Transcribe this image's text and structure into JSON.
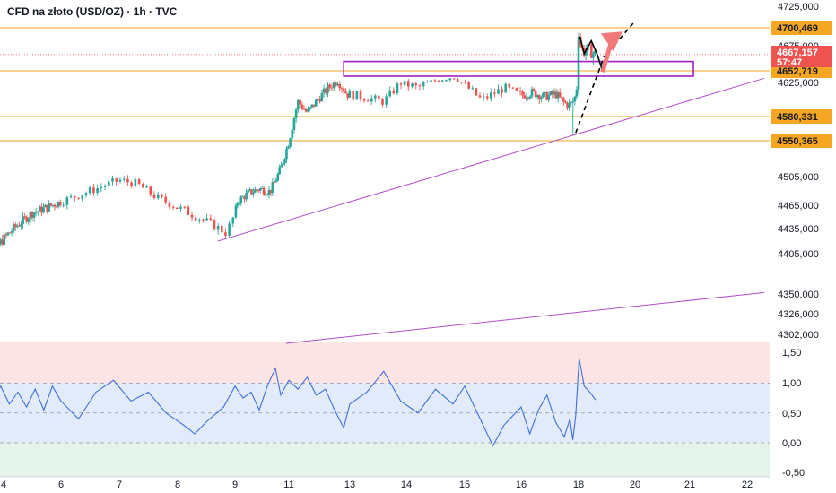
{
  "header": {
    "title": "CFD na złoto (USD/OZ) · 1h · TVC"
  },
  "colors": {
    "up": "#26a69a",
    "down": "#ef5350",
    "level_line": "#f5a623",
    "trendline": "#b04fc9",
    "box": "#a020c0",
    "oscillator": "#3d6fd6",
    "last_price": "#ef5350",
    "osc_zone_top": "#fde4e4",
    "osc_zone_mid": "#e3ebfb",
    "osc_zone_bottom": "#e4f4ea"
  },
  "chart_data": [
    {
      "type": "candlestick",
      "title": "CFD na złoto (USD/OZ) · 1h · TVC",
      "ylim": [
        4300,
        4730
      ],
      "y_ticks": [
        "4725,000",
        "4700,469",
        "4675,000",
        "4667,157",
        "4652,719",
        "4625,000",
        "4580,331",
        "4550,365",
        "4505,000",
        "4465,000",
        "4435,000",
        "4405,000",
        "4350,000",
        "4326,000",
        "4302,000"
      ],
      "x_ticks": [
        "4",
        "6",
        "7",
        "8",
        "9",
        "11",
        "13",
        "14",
        "15",
        "16",
        "18",
        "20",
        "21",
        "22"
      ],
      "x_tick_days": [
        4,
        6,
        7,
        8,
        9,
        11,
        13,
        14,
        15,
        16,
        18,
        20,
        21,
        22
      ],
      "horizontal_levels": [
        4700.469,
        4652.719,
        4580.331,
        4550.365
      ],
      "last_price": 4667.157,
      "last_price_label": "4667,157",
      "countdown": "57:47",
      "price_path": [
        [
          3.05,
          4330
        ],
        [
          3.4,
          4390
        ],
        [
          3.8,
          4415
        ],
        [
          4.2,
          4430
        ],
        [
          4.5,
          4440
        ],
        [
          5.0,
          4455
        ],
        [
          5.5,
          4462
        ],
        [
          6.0,
          4470
        ],
        [
          6.5,
          4485
        ],
        [
          7.0,
          4500
        ],
        [
          7.3,
          4495
        ],
        [
          7.6,
          4478
        ],
        [
          8.0,
          4462
        ],
        [
          8.3,
          4452
        ],
        [
          8.6,
          4440
        ],
        [
          8.85,
          4430
        ],
        [
          9.1,
          4470
        ],
        [
          9.5,
          4482
        ],
        [
          9.9,
          4488
        ],
        [
          10.3,
          4484
        ],
        [
          10.7,
          4515
        ],
        [
          11.0,
          4550
        ],
        [
          11.3,
          4600
        ],
        [
          11.6,
          4585
        ],
        [
          12.0,
          4605
        ],
        [
          12.3,
          4618
        ],
        [
          12.6,
          4628
        ],
        [
          12.9,
          4610
        ],
        [
          13.3,
          4605
        ],
        [
          13.6,
          4600
        ],
        [
          13.9,
          4625
        ],
        [
          14.2,
          4618
        ],
        [
          14.5,
          4630
        ],
        [
          14.8,
          4638
        ],
        [
          15.0,
          4622
        ],
        [
          15.3,
          4602
        ],
        [
          15.7,
          4618
        ],
        [
          16.0,
          4608
        ],
        [
          16.4,
          4612
        ],
        [
          16.8,
          4606
        ],
        [
          17.2,
          4610
        ],
        [
          17.5,
          4598
        ],
        [
          17.7,
          4595
        ],
        [
          17.85,
          4602
        ],
        [
          17.97,
          4625
        ],
        [
          18.02,
          4680
        ],
        [
          18.15,
          4670
        ],
        [
          18.35,
          4672
        ],
        [
          18.55,
          4668
        ],
        [
          18.65,
          4667
        ]
      ],
      "trendline_support": [
        [
          8.7,
          4420
        ],
        [
          22.3,
          4635
        ]
      ],
      "trendline_lower": [
        [
          10.9,
          4302
        ],
        [
          22.3,
          4352
        ]
      ],
      "range_box": {
        "x0": 12.8,
        "x1": 22.0,
        "y0": 4640,
        "y1": 4661
      },
      "projection_black": [
        [
          17.9,
          4560
        ],
        [
          18.9,
          4665
        ],
        [
          20.0,
          4708
        ]
      ],
      "zigzag_black": [
        [
          18.05,
          4688
        ],
        [
          18.2,
          4668
        ],
        [
          18.45,
          4682
        ],
        [
          18.65,
          4668
        ],
        [
          18.85,
          4652
        ]
      ],
      "arrow_red": [
        [
          18.85,
          4650
        ],
        [
          19.55,
          4695
        ]
      ],
      "oscillator": {
        "ylim": [
          -0.55,
          1.55
        ],
        "y_ticks": [
          "1,50",
          "1,00",
          "0,50",
          "0,00",
          "-0,50"
        ],
        "values": [
          [
            3.05,
            0.5
          ],
          [
            3.3,
            0.85
          ],
          [
            3.6,
            0.7
          ],
          [
            3.9,
            0.95
          ],
          [
            4.2,
            0.65
          ],
          [
            4.5,
            0.85
          ],
          [
            4.8,
            0.6
          ],
          [
            5.1,
            0.9
          ],
          [
            5.4,
            0.55
          ],
          [
            5.7,
            0.95
          ],
          [
            6.0,
            0.7
          ],
          [
            6.3,
            0.4
          ],
          [
            6.6,
            0.85
          ],
          [
            6.9,
            1.05
          ],
          [
            7.2,
            0.7
          ],
          [
            7.5,
            0.85
          ],
          [
            7.8,
            0.5
          ],
          [
            8.1,
            0.3
          ],
          [
            8.3,
            0.15
          ],
          [
            8.5,
            0.35
          ],
          [
            8.8,
            0.6
          ],
          [
            9.0,
            0.95
          ],
          [
            9.3,
            0.75
          ],
          [
            9.6,
            0.85
          ],
          [
            9.9,
            0.55
          ],
          [
            10.2,
            0.95
          ],
          [
            10.5,
            1.25
          ],
          [
            10.7,
            0.8
          ],
          [
            11.0,
            1.05
          ],
          [
            11.3,
            0.9
          ],
          [
            11.6,
            1.1
          ],
          [
            11.9,
            0.8
          ],
          [
            12.2,
            0.9
          ],
          [
            12.5,
            0.55
          ],
          [
            12.8,
            0.25
          ],
          [
            13.0,
            0.65
          ],
          [
            13.3,
            0.85
          ],
          [
            13.6,
            1.2
          ],
          [
            13.9,
            0.7
          ],
          [
            14.2,
            0.5
          ],
          [
            14.5,
            0.9
          ],
          [
            14.8,
            0.65
          ],
          [
            15.0,
            0.95
          ],
          [
            15.3,
            0.35
          ],
          [
            15.5,
            -0.05
          ],
          [
            15.7,
            0.3
          ],
          [
            16.0,
            0.6
          ],
          [
            16.3,
            0.15
          ],
          [
            16.6,
            0.55
          ],
          [
            16.9,
            0.8
          ],
          [
            17.2,
            0.35
          ],
          [
            17.5,
            0.1
          ],
          [
            17.7,
            0.4
          ],
          [
            17.8,
            0.05
          ],
          [
            17.9,
            0.45
          ],
          [
            18.02,
            1.42
          ],
          [
            18.2,
            0.95
          ],
          [
            18.4,
            0.85
          ],
          [
            18.6,
            0.72
          ]
        ]
      }
    }
  ]
}
